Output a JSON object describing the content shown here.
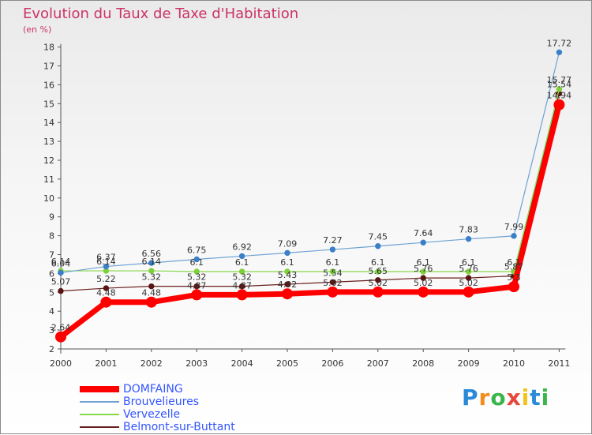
{
  "title": "Evolution du Taux de Taxe d'Habitation",
  "unit_label": "(en %)",
  "logo": {
    "letters": [
      "P",
      "r",
      "o",
      "x",
      "i",
      "t",
      "i"
    ],
    "colors": [
      "#2a8ad8",
      "#f28c1e",
      "#3ab54a",
      "#e8473c",
      "#f2c21e",
      "#2a8ad8",
      "#3ab54a"
    ]
  },
  "chart_data": {
    "type": "line",
    "title": "Evolution du Taux de Taxe d'Habitation",
    "ylabel": "(en %)",
    "xlabel": "",
    "ylim": [
      2,
      18
    ],
    "yticks": [
      "2",
      "3",
      "4",
      "5",
      "6",
      "7",
      "8",
      "9",
      "10",
      "11",
      "12",
      "13",
      "14",
      "15",
      "16",
      "17",
      "18"
    ],
    "categories": [
      "2000",
      "2001",
      "2002",
      "2003",
      "2004",
      "2005",
      "2006",
      "2007",
      "2008",
      "2009",
      "2010",
      "2011"
    ],
    "series": [
      {
        "name": "Belmont-sur-Buttant",
        "color": "#6b1f1f",
        "values": [
          5.07,
          5.22,
          5.32,
          5.32,
          5.32,
          5.43,
          5.54,
          5.65,
          5.76,
          5.76,
          5.87,
          15.54
        ],
        "labels": [
          "5.07",
          "5.22",
          "5.32",
          "5.32",
          "5.32",
          "5.43",
          "5.54",
          "5.65",
          "5.76",
          "5.76",
          "5.87",
          "15.54"
        ]
      },
      {
        "name": "Vervezelle",
        "color": "#88d84a",
        "values": [
          6.14,
          6.14,
          6.14,
          6.1,
          6.1,
          6.1,
          6.1,
          6.1,
          6.1,
          6.1,
          6.1,
          15.77
        ],
        "labels": [
          "6.14",
          "6.14",
          "6.14",
          "6.1",
          "6.1",
          "6.1",
          "6.1",
          "6.1",
          "6.1",
          "6.1",
          "6.1",
          "15.77"
        ]
      },
      {
        "name": "Brouvelieures",
        "color": "#6ea2d2",
        "values": [
          6.04,
          6.37,
          6.56,
          6.75,
          6.92,
          7.09,
          7.27,
          7.45,
          7.64,
          7.83,
          7.99,
          17.72
        ],
        "labels": [
          "6.04",
          "6.37",
          "6.56",
          "6.75",
          "6.92",
          "7.09",
          "7.27",
          "7.45",
          "7.64",
          "7.83",
          "7.99",
          "17.72"
        ]
      },
      {
        "name": "DOMFAING",
        "color": "#ff0000",
        "values": [
          2.64,
          4.48,
          4.48,
          4.87,
          4.87,
          4.92,
          5.02,
          5.02,
          5.02,
          5.02,
          5.3,
          14.94
        ],
        "labels": [
          "2.64",
          "4.48",
          "4.48",
          "4.87",
          "4.87",
          "4.92",
          "5.02",
          "5.02",
          "5.02",
          "5.02",
          "5.3",
          "14.94"
        ]
      }
    ],
    "legend": [
      "DOMFAING",
      "Brouvelieures",
      "Vervezelle",
      "Belmont-sur-Buttant"
    ],
    "legend_position": "bottom-left",
    "grid": false
  }
}
